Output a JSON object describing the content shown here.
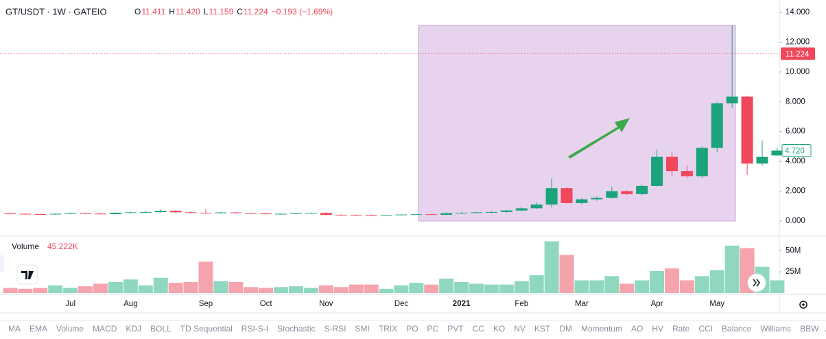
{
  "header": {
    "symbol": "GT/USDT · 1W · GATEIO",
    "ohlc": [
      {
        "key": "O",
        "value": "11.411"
      },
      {
        "key": "H",
        "value": "11.420"
      },
      {
        "key": "L",
        "value": "11.159"
      },
      {
        "key": "C",
        "value": "11.224"
      }
    ],
    "change": "−0.193 (−1.69%)"
  },
  "chart_data": {
    "type": "candlestick",
    "categories": [
      null,
      null,
      null,
      null,
      "Jul",
      null,
      null,
      null,
      "Aug",
      null,
      null,
      null,
      null,
      "Sep",
      null,
      null,
      null,
      "Oct",
      null,
      null,
      null,
      "Nov",
      null,
      null,
      null,
      null,
      "Dec",
      null,
      null,
      null,
      "2021",
      null,
      null,
      null,
      "Feb",
      null,
      null,
      null,
      "Mar",
      null,
      null,
      null,
      null,
      "Apr",
      null,
      null,
      null,
      "May",
      null,
      null,
      null,
      null
    ],
    "open": [
      0.5,
      0.48,
      0.46,
      0.44,
      0.48,
      0.52,
      0.49,
      0.46,
      0.55,
      0.58,
      0.6,
      0.68,
      0.58,
      0.55,
      0.52,
      0.57,
      0.53,
      0.5,
      0.46,
      0.48,
      0.52,
      0.54,
      0.41,
      0.4,
      0.38,
      0.37,
      0.4,
      0.43,
      0.45,
      0.41,
      0.52,
      0.55,
      0.58,
      0.6,
      0.7,
      0.85,
      1.1,
      2.2,
      1.2,
      1.45,
      1.55,
      2.0,
      1.8,
      2.35,
      4.3,
      3.35,
      3.0,
      4.9,
      7.9,
      8.35,
      3.85,
      4.4
    ],
    "high": [
      0.55,
      0.52,
      0.5,
      0.5,
      0.55,
      0.56,
      0.53,
      0.58,
      0.62,
      0.66,
      0.78,
      0.72,
      0.65,
      0.8,
      0.6,
      0.6,
      0.56,
      0.54,
      0.5,
      0.55,
      0.56,
      0.58,
      0.45,
      0.44,
      0.42,
      0.42,
      0.46,
      0.48,
      0.47,
      0.58,
      0.58,
      0.6,
      0.65,
      0.75,
      0.92,
      1.25,
      2.85,
      2.25,
      1.55,
      1.65,
      2.3,
      2.05,
      2.45,
      4.8,
      4.6,
      3.7,
      5.0,
      8.0,
      13.1,
      8.4,
      5.4,
      4.9
    ],
    "low": [
      0.46,
      0.44,
      0.43,
      0.42,
      0.45,
      0.47,
      0.44,
      0.45,
      0.5,
      0.53,
      0.55,
      0.54,
      0.5,
      0.48,
      0.49,
      0.5,
      0.47,
      0.44,
      0.42,
      0.45,
      0.48,
      0.38,
      0.37,
      0.36,
      0.35,
      0.35,
      0.37,
      0.4,
      0.39,
      0.4,
      0.47,
      0.5,
      0.53,
      0.56,
      0.65,
      0.8,
      0.9,
      1.15,
      1.1,
      1.35,
      1.5,
      1.75,
      1.75,
      2.3,
      3.0,
      2.85,
      2.9,
      4.6,
      7.6,
      3.1,
      3.7,
      4.35
    ],
    "close": [
      0.48,
      0.46,
      0.44,
      0.48,
      0.52,
      0.49,
      0.46,
      0.55,
      0.58,
      0.6,
      0.68,
      0.58,
      0.55,
      0.52,
      0.57,
      0.53,
      0.5,
      0.46,
      0.48,
      0.52,
      0.54,
      0.41,
      0.4,
      0.38,
      0.37,
      0.4,
      0.43,
      0.45,
      0.41,
      0.52,
      0.55,
      0.58,
      0.6,
      0.7,
      0.85,
      1.1,
      2.2,
      1.2,
      1.45,
      1.55,
      2.0,
      1.8,
      2.35,
      4.3,
      3.35,
      3.0,
      4.9,
      7.9,
      8.35,
      3.85,
      4.3,
      4.72
    ],
    "volume": [
      6000000,
      5000000,
      6000000,
      9000000,
      6000000,
      8000000,
      11000000,
      13000000,
      16000000,
      9000000,
      18000000,
      12000000,
      13000000,
      37000000,
      14000000,
      13000000,
      7000000,
      6000000,
      7000000,
      8000000,
      6000000,
      9000000,
      7000000,
      10000000,
      10000000,
      5000000,
      9000000,
      12000000,
      10000000,
      17000000,
      13000000,
      11000000,
      10000000,
      10000000,
      14000000,
      21000000,
      61000000,
      45000000,
      15000000,
      15000000,
      20000000,
      11000000,
      15000000,
      26000000,
      29000000,
      15000000,
      20000000,
      27000000,
      56000000,
      53000000,
      31000000,
      15000000
    ],
    "up_color": "#1ba37b",
    "down_color": "#f0475a",
    "volume_up_color": "#8fd8bf",
    "volume_down_color": "#f5a3ad",
    "ylim": [
      -0.97,
      14.83
    ],
    "yticks": [
      {
        "value": 0,
        "label": "0.000"
      },
      {
        "value": 2,
        "label": "2.000"
      },
      {
        "value": 4,
        "label": "4.000"
      },
      {
        "value": 6,
        "label": "6.000"
      },
      {
        "value": 8,
        "label": "8.000"
      },
      {
        "value": 10,
        "label": "10.000"
      },
      {
        "value": 12,
        "label": "12.000"
      },
      {
        "value": 14,
        "label": "14.000"
      }
    ],
    "last_price": {
      "value": 11.224,
      "label": "11.224"
    },
    "current_price": {
      "value": 4.72,
      "label": "4.720"
    },
    "volume_title": "Volume",
    "volume_value": "45.222K",
    "volume_ylim": [
      0,
      64000000
    ],
    "volume_yticks": [
      {
        "value": 25000000,
        "label": "25M"
      },
      {
        "value": 50000000,
        "label": "50M"
      }
    ]
  },
  "toolbar": {
    "indicators": [
      "MA",
      "EMA",
      "Volume",
      "MACD",
      "KDJ",
      "BOLL",
      "TD Sequential",
      "RSI-S-I",
      "Stochastic",
      "S-RSI",
      "SMI",
      "TRIX",
      "PO",
      "PC",
      "PVT",
      "CC",
      "KO",
      "NV",
      "KST",
      "DM",
      "Momentum",
      "AO",
      "HV",
      "Rate",
      "CCI",
      "Balance",
      "Williams",
      "BBW"
    ]
  }
}
